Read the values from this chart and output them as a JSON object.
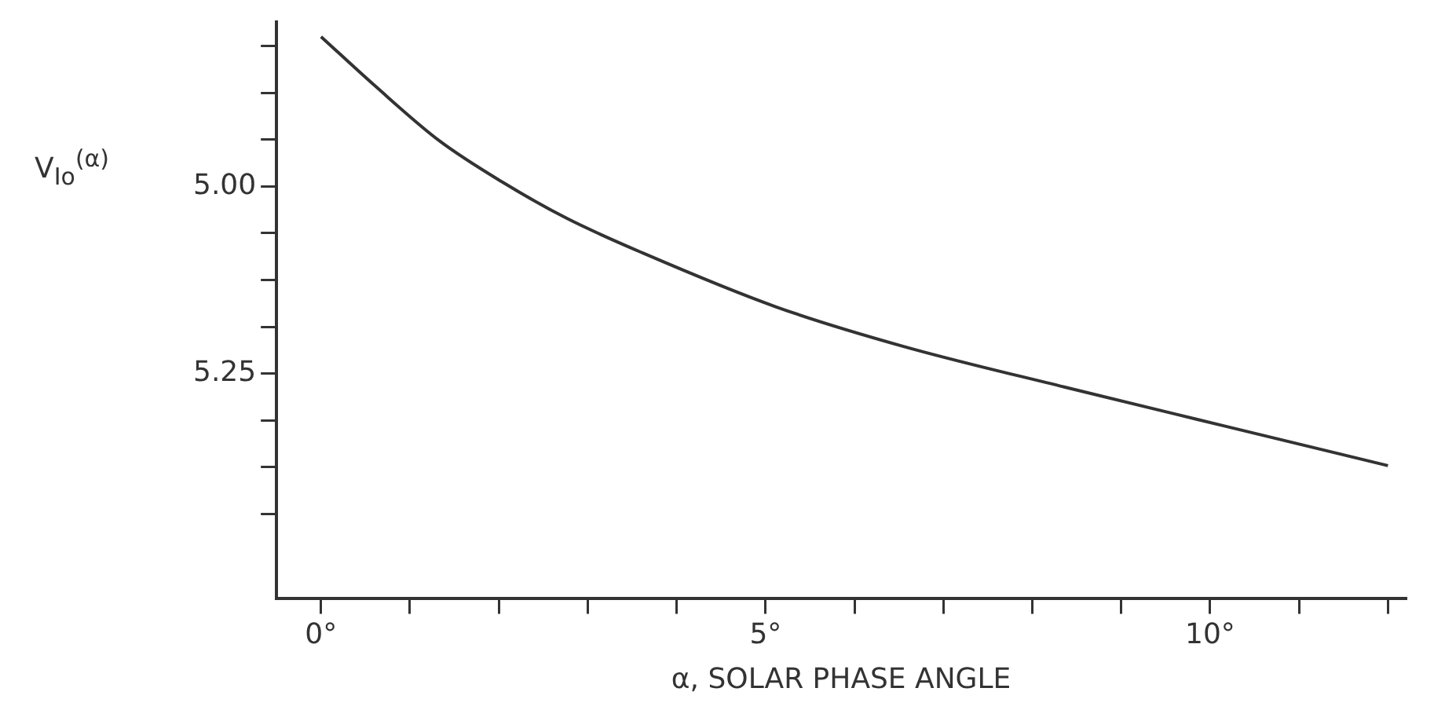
{
  "chart_data": {
    "type": "line",
    "xlabel": "α, SOLAR PHASE ANGLE",
    "ylabel": "V$_{Io}$$^{(α)}$",
    "x": [
      0,
      0.61,
      1.33,
      2.05,
      2.77,
      3.62,
      5.12,
      6.56,
      8.36,
      10.16,
      12.0
    ],
    "values": [
      4.8,
      4.866,
      4.939,
      4.995,
      5.043,
      5.089,
      5.161,
      5.214,
      5.268,
      5.32,
      5.373
    ],
    "color": "#333333",
    "marker": "none",
    "line_style": "solid",
    "grid": false,
    "legend": false,
    "xlim": [
      -0.5,
      12.2
    ],
    "xticks": [
      {
        "value": 0,
        "label": "0°"
      },
      {
        "value": 1,
        "label": null
      },
      {
        "value": 2,
        "label": null
      },
      {
        "value": 3,
        "label": null
      },
      {
        "value": 4,
        "label": null
      },
      {
        "value": 5,
        "label": "5°"
      },
      {
        "value": 6,
        "label": null
      },
      {
        "value": 7,
        "label": null
      },
      {
        "value": 8,
        "label": null
      },
      {
        "value": 9,
        "label": null
      },
      {
        "value": 10,
        "label": "10°"
      },
      {
        "value": 11,
        "label": null
      },
      {
        "value": 12,
        "label": null
      }
    ],
    "ylim": [
      5.55,
      4.78
    ],
    "yticks": [
      {
        "value": 4.8125,
        "label": null
      },
      {
        "value": 4.875,
        "label": null
      },
      {
        "value": 4.9375,
        "label": null
      },
      {
        "value": 5.0,
        "label": "5.00"
      },
      {
        "value": 5.0625,
        "label": null
      },
      {
        "value": 5.125,
        "label": null
      },
      {
        "value": 5.1875,
        "label": null
      },
      {
        "value": 5.25,
        "label": "5.25"
      },
      {
        "value": 5.3125,
        "label": null
      },
      {
        "value": 5.375,
        "label": null
      },
      {
        "value": 5.4375,
        "label": null
      }
    ]
  }
}
